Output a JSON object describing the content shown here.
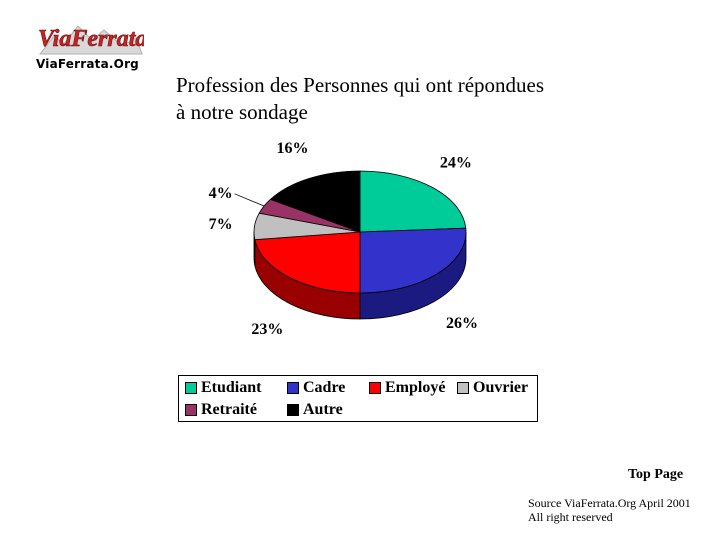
{
  "header": {
    "logo_text": "ViaFerrata",
    "site_name": "ViaFerrata.Org"
  },
  "chart_data": {
    "type": "pie",
    "title_line1": "Profession des Personnes qui ont répondues",
    "title_line2": "à notre sondage",
    "categories": [
      "Etudiant",
      "Cadre",
      "Employé",
      "Ouvrier",
      "Retraité",
      "Autre"
    ],
    "values": [
      24,
      26,
      23,
      7,
      4,
      16
    ],
    "labels": [
      "24%",
      "26%",
      "23%",
      "7%",
      "4%",
      "16%"
    ],
    "colors": [
      "#00cc99",
      "#3333cc",
      "#ff0000",
      "#c0c0c0",
      "#993366",
      "#000000"
    ],
    "side_colors": [
      "#008a66",
      "#1a1a80",
      "#990000",
      "#808080",
      "#5c1f3d",
      "#000000"
    ],
    "legend_placement": "bottom",
    "three_d": true
  },
  "footer": {
    "top_page": "Top Page",
    "source_line1": "Source ViaFerrata.Org April 2001",
    "source_line2": "All right reserved"
  }
}
